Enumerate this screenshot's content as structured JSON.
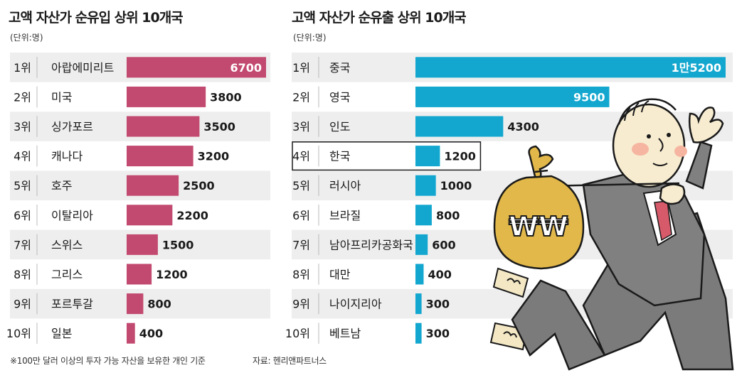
{
  "chart_data": [
    {
      "type": "bar",
      "title": "고액 자산가 순유입 상위 10개국",
      "unit_label": "(단위:명)",
      "ranks": [
        "1위",
        "2위",
        "3위",
        "4위",
        "5위",
        "6위",
        "7위",
        "8위",
        "9위",
        "10위"
      ],
      "categories": [
        "아랍에미리트",
        "미국",
        "싱가포르",
        "캐나다",
        "호주",
        "이탈리아",
        "스위스",
        "그리스",
        "포르투갈",
        "일본"
      ],
      "values": [
        6700,
        3800,
        3500,
        3200,
        2500,
        2200,
        1500,
        1200,
        800,
        400
      ],
      "value_labels": [
        "6700",
        "3800",
        "3500",
        "3200",
        "2500",
        "2200",
        "1500",
        "1200",
        "800",
        "400"
      ],
      "color": "#c2496f"
    },
    {
      "type": "bar",
      "title": "고액 자산가 순유출 상위 10개국",
      "unit_label": "(단위:명)",
      "ranks": [
        "1위",
        "2위",
        "3위",
        "4위",
        "5위",
        "6위",
        "7위",
        "8위",
        "9위",
        "10위"
      ],
      "categories": [
        "중국",
        "영국",
        "인도",
        "한국",
        "러시아",
        "브라질",
        "남아프리카공화국",
        "대만",
        "나이지리아",
        "베트남"
      ],
      "values": [
        15200,
        9500,
        4300,
        1200,
        1000,
        800,
        600,
        400,
        300,
        300
      ],
      "value_labels": [
        "1만5200",
        "9500",
        "4300",
        "1200",
        "1000",
        "800",
        "600",
        "400",
        "300",
        "300"
      ],
      "highlight_category": "한국",
      "color": "#13a7cf"
    }
  ],
  "footnote": "※100만 달러 이상의 투자 가능 자산을 보유한 개인 기준",
  "source": "자료: 헨리앤파트너스"
}
